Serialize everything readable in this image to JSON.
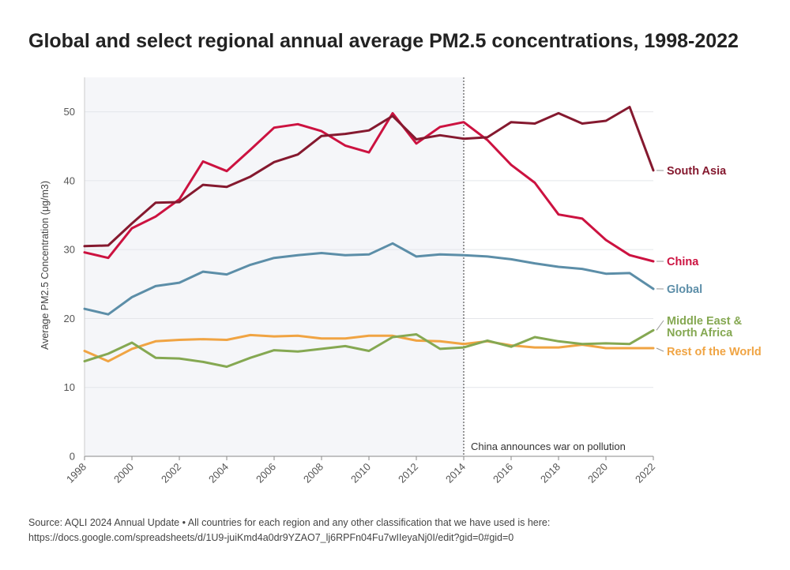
{
  "chart_data": {
    "type": "line",
    "title": "Global and select regional annual average PM2.5 concentrations, 1998-2022",
    "ylabel": "Average PM2.5 Concentration (μg/m3)",
    "xlabel": "",
    "x": [
      1998,
      1999,
      2000,
      2001,
      2002,
      2003,
      2004,
      2005,
      2006,
      2007,
      2008,
      2009,
      2010,
      2011,
      2012,
      2013,
      2014,
      2015,
      2016,
      2017,
      2018,
      2019,
      2020,
      2021,
      2022
    ],
    "xlim": [
      1998,
      2022
    ],
    "ylim": [
      0,
      55
    ],
    "x_ticks": [
      "1998",
      "2000",
      "2002",
      "2004",
      "2006",
      "2008",
      "2010",
      "2012",
      "2014",
      "2016",
      "2018",
      "2020",
      "2022"
    ],
    "y_ticks": [
      "0",
      "10",
      "20",
      "30",
      "40",
      "50"
    ],
    "grid": true,
    "shaded_region": {
      "from": 1998,
      "to": 2014,
      "color": "#f5f6f9"
    },
    "annotation": {
      "x": 2014,
      "text": "China announces war on pollution"
    },
    "series": [
      {
        "name": "South Asia",
        "color": "#85192f",
        "values": [
          30.5,
          30.6,
          33.8,
          36.8,
          36.9,
          39.4,
          39.1,
          40.6,
          42.7,
          43.8,
          46.5,
          46.8,
          47.3,
          49.4,
          46.0,
          46.6,
          46.1,
          46.3,
          48.5,
          48.3,
          49.8,
          48.3,
          48.7,
          50.7,
          41.5
        ]
      },
      {
        "name": "China",
        "color": "#cc1240",
        "values": [
          29.6,
          28.8,
          33.1,
          34.8,
          37.3,
          42.8,
          41.4,
          44.5,
          47.7,
          48.2,
          47.2,
          45.1,
          44.1,
          49.8,
          45.4,
          47.8,
          48.5,
          45.9,
          42.3,
          39.7,
          35.1,
          34.5,
          31.4,
          29.2,
          28.3
        ]
      },
      {
        "name": "Global",
        "color": "#5c8ea8",
        "values": [
          21.4,
          20.6,
          23.1,
          24.7,
          25.2,
          26.8,
          26.4,
          27.8,
          28.8,
          29.2,
          29.5,
          29.2,
          29.3,
          30.9,
          29.0,
          29.3,
          29.2,
          29.0,
          28.6,
          28.0,
          27.5,
          27.2,
          26.5,
          26.6,
          24.3
        ]
      },
      {
        "name": "Middle East & North Africa",
        "color": "#85a852",
        "values": [
          13.8,
          14.9,
          16.5,
          14.3,
          14.2,
          13.7,
          13.0,
          14.3,
          15.4,
          15.2,
          15.6,
          16.0,
          15.3,
          17.3,
          17.7,
          15.6,
          15.8,
          16.8,
          15.9,
          17.3,
          16.7,
          16.3,
          16.4,
          16.3,
          18.3
        ]
      },
      {
        "name": "Rest of the World",
        "color": "#f0a443",
        "values": [
          15.3,
          13.8,
          15.6,
          16.7,
          16.9,
          17.0,
          16.9,
          17.6,
          17.4,
          17.5,
          17.1,
          17.1,
          17.5,
          17.5,
          16.8,
          16.7,
          16.3,
          16.7,
          16.1,
          15.8,
          15.8,
          16.2,
          15.7,
          15.7,
          15.7
        ]
      }
    ],
    "labels": {
      "south_asia": "South Asia",
      "china": "China",
      "global": "Global",
      "mena_line1": "Middle East &",
      "mena_line2": "North Africa",
      "rest": "Rest of the World"
    }
  },
  "source": {
    "line1": "Source: AQLI 2024 Annual Update • All countries for each region and any other classification that we have used is here:",
    "line2": "https://docs.google.com/spreadsheets/d/1U9-juiKmd4a0dr9YZAO7_lj6RPFn04Fu7wIIeyaNj0I/edit?gid=0#gid=0"
  }
}
